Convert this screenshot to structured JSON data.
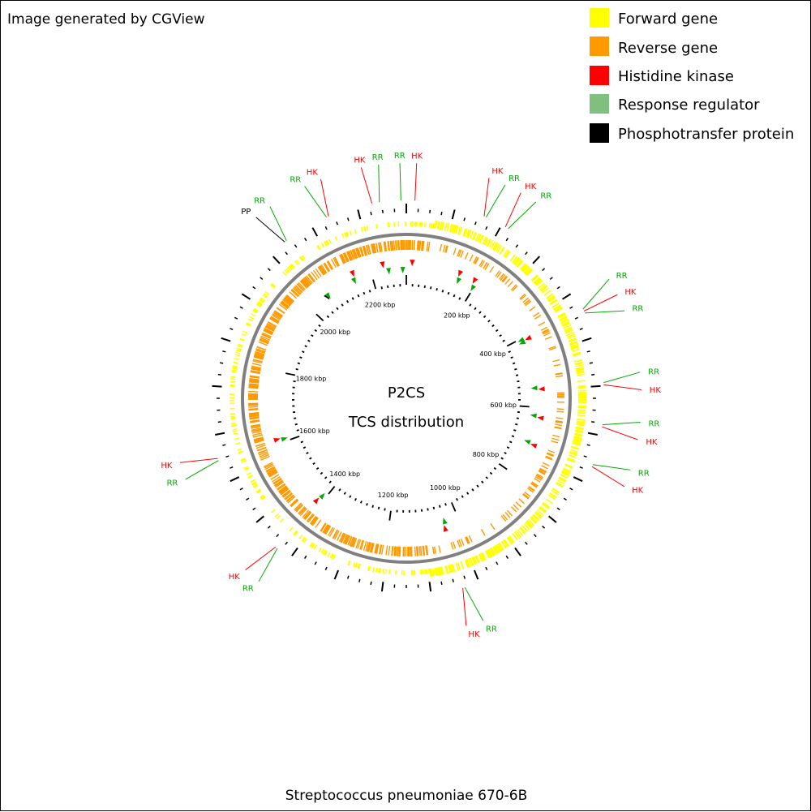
{
  "credit": "Image generated by CGView",
  "title": "P2CS",
  "subtitle": "TCS distribution",
  "organism": "Streptococcus pneumoniae 670-6B",
  "colors": {
    "forward": "#ffff00",
    "reverse": "#ff9900",
    "hk": "#ff0000",
    "rr": "#00aa00",
    "legend_rr": "#7fbf7f",
    "pp": "#000000",
    "backbone": "#808080"
  },
  "legend": [
    {
      "label": "Forward gene",
      "color": "#ffff00"
    },
    {
      "label": "Reverse gene",
      "color": "#ff9900"
    },
    {
      "label": "Histidine kinase",
      "color": "#ff0000"
    },
    {
      "label": "Response regulator",
      "color": "#7fbf7f"
    },
    {
      "label": "Phosphotransfer protein",
      "color": "#000000"
    }
  ],
  "genome": {
    "length_kbp": 2300,
    "tick_labels": [
      "200 kbp",
      "400 kbp",
      "600 kbp",
      "800 kbp",
      "1000 kbp",
      "1200 kbp",
      "1400 kbp",
      "1600 kbp",
      "1800 kbp",
      "2000 kbp",
      "2200 kbp"
    ],
    "tick_values_kbp": [
      200,
      400,
      600,
      800,
      1000,
      1200,
      1400,
      1600,
      1800,
      2000,
      2200
    ]
  },
  "tcs_features": [
    {
      "type": "HK",
      "position_kbp": 16
    },
    {
      "type": "RR",
      "position_kbp": 2290
    },
    {
      "type": "RR",
      "position_kbp": 2250
    },
    {
      "type": "HK",
      "position_kbp": 2236
    },
    {
      "type": "HK",
      "position_kbp": 148
    },
    {
      "type": "RR",
      "position_kbp": 152
    },
    {
      "type": "HK",
      "position_kbp": 192
    },
    {
      "type": "RR",
      "position_kbp": 198
    },
    {
      "type": "RR",
      "position_kbp": 404
    },
    {
      "type": "HK",
      "position_kbp": 408
    },
    {
      "type": "RR",
      "position_kbp": 412
    },
    {
      "type": "RR",
      "position_kbp": 546
    },
    {
      "type": "HK",
      "position_kbp": 550
    },
    {
      "type": "RR",
      "position_kbp": 624
    },
    {
      "type": "HK",
      "position_kbp": 628
    },
    {
      "type": "RR",
      "position_kbp": 700
    },
    {
      "type": "HK",
      "position_kbp": 704
    },
    {
      "type": "RR",
      "position_kbp": 1040
    },
    {
      "type": "HK",
      "position_kbp": 1044
    },
    {
      "type": "RR",
      "position_kbp": 1410
    },
    {
      "type": "HK",
      "position_kbp": 1414
    },
    {
      "type": "RR",
      "position_kbp": 1608
    },
    {
      "type": "HK",
      "position_kbp": 1612
    },
    {
      "type": "PP",
      "position_kbp": 2058
    },
    {
      "type": "RR",
      "position_kbp": 2062
    },
    {
      "type": "RR",
      "position_kbp": 2148
    },
    {
      "type": "HK",
      "position_kbp": 2152
    }
  ],
  "callouts": [
    {
      "label": "HK",
      "type": "HK",
      "position_kbp": 2236
    },
    {
      "label": "RR",
      "type": "RR",
      "position_kbp": 2250
    },
    {
      "label": "RR",
      "type": "RR",
      "position_kbp": 2290
    },
    {
      "label": "HK",
      "type": "HK",
      "position_kbp": 16
    },
    {
      "label": "RR",
      "type": "RR",
      "position_kbp": 152
    },
    {
      "label": "HK",
      "type": "HK",
      "position_kbp": 148
    },
    {
      "label": "HK",
      "type": "HK",
      "position_kbp": 192
    },
    {
      "label": "RR",
      "type": "RR",
      "position_kbp": 198
    },
    {
      "label": "RR",
      "type": "RR",
      "position_kbp": 404
    },
    {
      "label": "HK",
      "type": "HK",
      "position_kbp": 408
    },
    {
      "label": "RR",
      "type": "RR",
      "position_kbp": 412
    },
    {
      "label": "RR",
      "type": "RR",
      "position_kbp": 546
    },
    {
      "label": "HK",
      "type": "HK",
      "position_kbp": 550
    },
    {
      "label": "RR",
      "type": "RR",
      "position_kbp": 624
    },
    {
      "label": "HK",
      "type": "HK",
      "position_kbp": 628
    },
    {
      "label": "RR",
      "type": "RR",
      "position_kbp": 700
    },
    {
      "label": "HK",
      "type": "HK",
      "position_kbp": 704
    },
    {
      "label": "HK",
      "type": "HK",
      "position_kbp": 1044
    },
    {
      "label": "RR",
      "type": "RR",
      "position_kbp": 1040
    },
    {
      "label": "RR",
      "type": "RR",
      "position_kbp": 1410
    },
    {
      "label": "HK",
      "type": "HK",
      "position_kbp": 1414
    },
    {
      "label": "RR",
      "type": "RR",
      "position_kbp": 1608
    },
    {
      "label": "HK",
      "type": "HK",
      "position_kbp": 1612
    },
    {
      "label": "PP",
      "type": "PP",
      "position_kbp": 2058
    },
    {
      "label": "RR",
      "type": "RR",
      "position_kbp": 2062
    },
    {
      "label": "RR",
      "type": "RR",
      "position_kbp": 2148
    },
    {
      "label": "HK",
      "type": "HK",
      "position_kbp": 2152
    }
  ]
}
